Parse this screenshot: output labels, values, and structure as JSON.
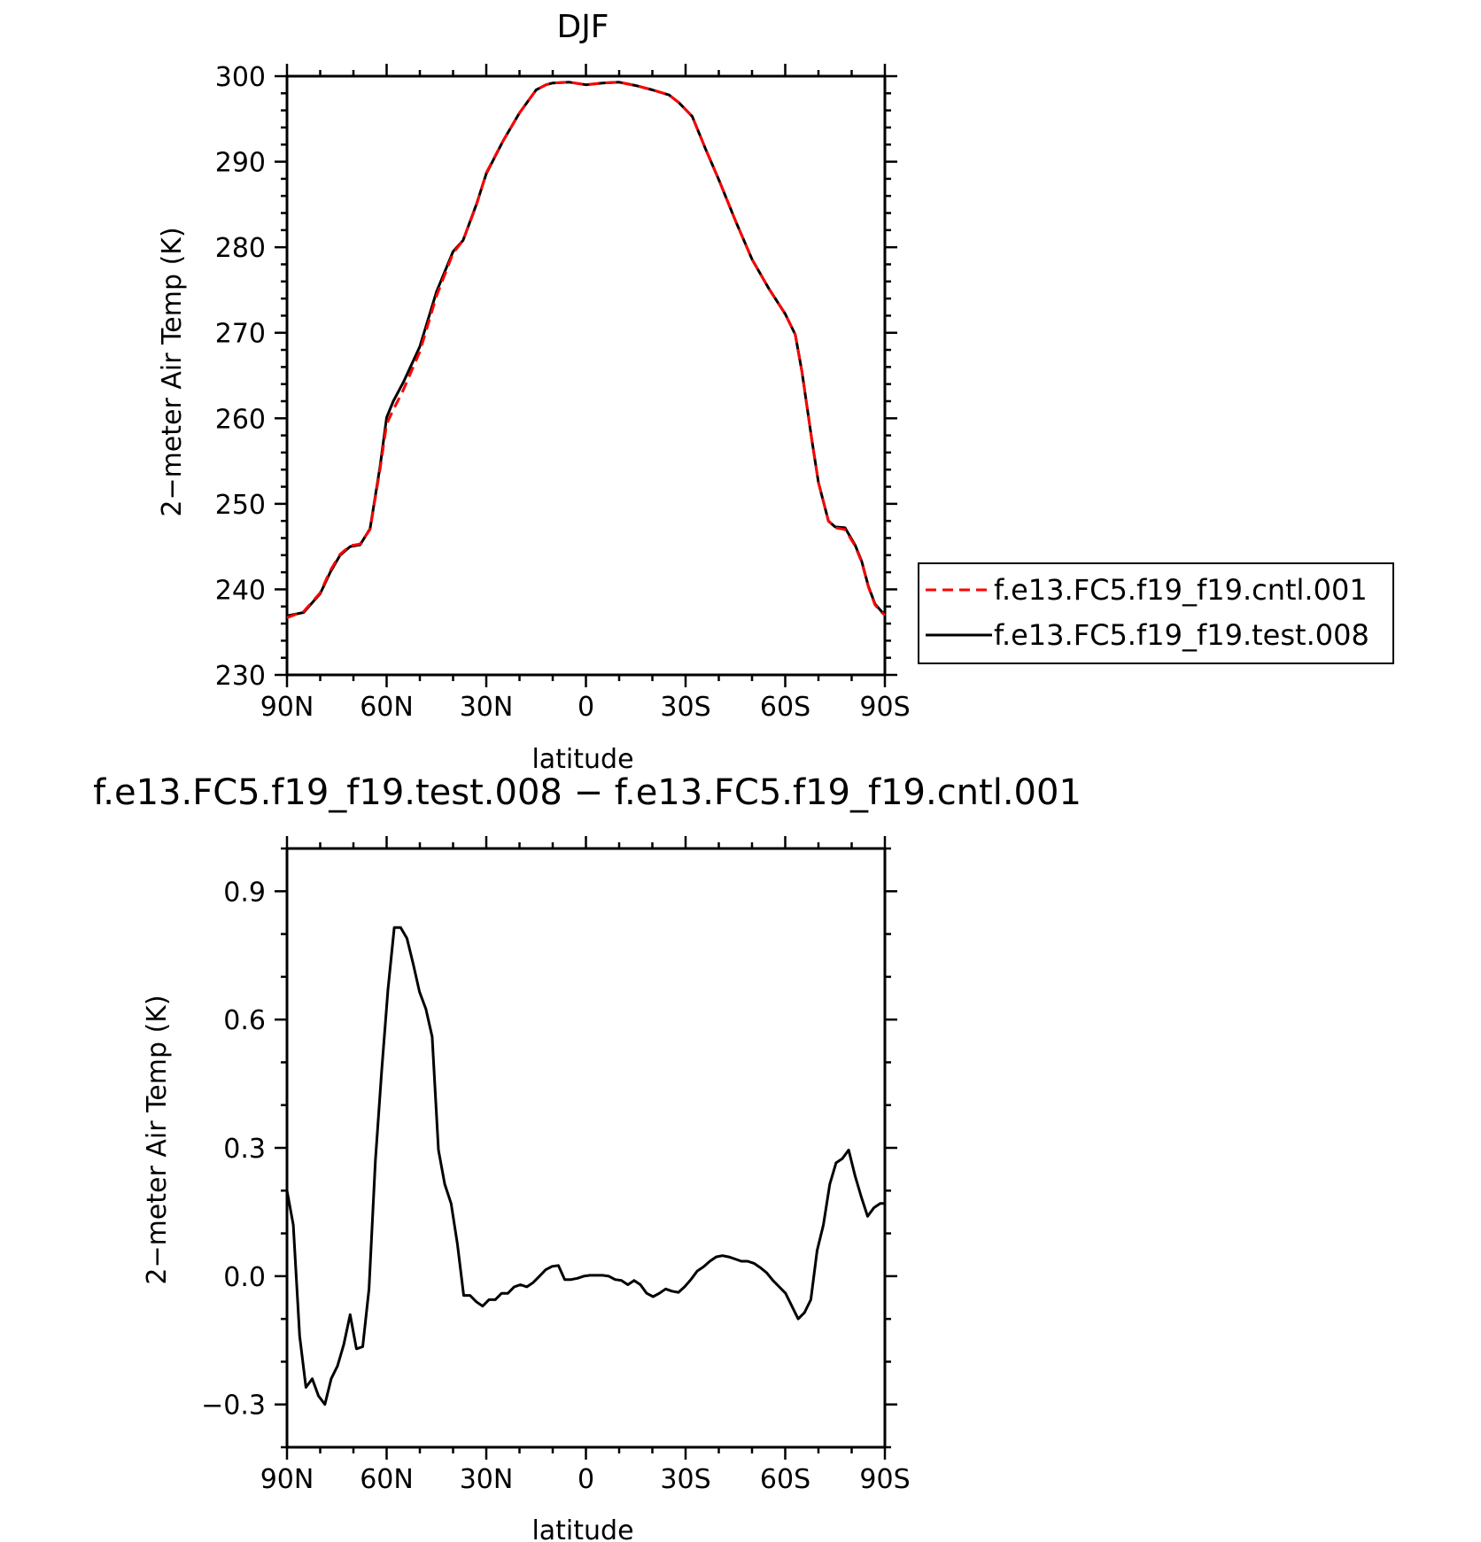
{
  "chart_data": [
    {
      "type": "line",
      "title": "DJF",
      "xlabel": "latitude",
      "ylabel": "2−meter Air Temp (K)",
      "xlim": [
        90,
        -90
      ],
      "ylim": [
        230,
        300
      ],
      "x_ticks": [
        {
          "value": 90,
          "label": "90N"
        },
        {
          "value": 60,
          "label": "60N"
        },
        {
          "value": 30,
          "label": "30N"
        },
        {
          "value": 0,
          "label": "0"
        },
        {
          "value": -30,
          "label": "30S"
        },
        {
          "value": -60,
          "label": "60S"
        },
        {
          "value": -90,
          "label": "90S"
        }
      ],
      "y_ticks": [
        {
          "value": 230,
          "label": "230"
        },
        {
          "value": 240,
          "label": "240"
        },
        {
          "value": 250,
          "label": "250"
        },
        {
          "value": 260,
          "label": "260"
        },
        {
          "value": 270,
          "label": "270"
        },
        {
          "value": 280,
          "label": "280"
        },
        {
          "value": 290,
          "label": "290"
        },
        {
          "value": 300,
          "label": "300"
        }
      ],
      "legend_position": "right",
      "series": [
        {
          "name": "f.e13.FC5.f19_f19.cntl.001",
          "color": "#ff0000",
          "dash": "dashed",
          "x": [
            90,
            85,
            80,
            77,
            74,
            71,
            68,
            65,
            62,
            60,
            58,
            55,
            50,
            45,
            40,
            37,
            33,
            30,
            25,
            20,
            15,
            12,
            10,
            5,
            0,
            -5,
            -10,
            -15,
            -20,
            -25,
            -28,
            -32,
            -36,
            -40,
            -45,
            -50,
            -55,
            -60,
            -63,
            -65,
            -68,
            -70,
            -73,
            -75,
            -78,
            -81,
            -83,
            -85,
            -87,
            -89,
            -90
          ],
          "y": [
            236.7,
            237.4,
            239.6,
            242.2,
            244.1,
            245.1,
            245.3,
            247.0,
            254.0,
            259.3,
            261.0,
            263.3,
            267.8,
            274.3,
            279.3,
            280.8,
            284.9,
            288.7,
            292.4,
            295.7,
            298.4,
            299.0,
            299.2,
            299.3,
            299.0,
            299.2,
            299.3,
            298.9,
            298.4,
            297.8,
            296.9,
            295.3,
            291.5,
            287.9,
            283.1,
            278.6,
            275.2,
            272.2,
            269.8,
            265.5,
            257.5,
            252.5,
            248.0,
            247.2,
            247.0,
            245.1,
            243.2,
            240.3,
            238.2,
            237.3,
            237.0
          ]
        },
        {
          "name": "f.e13.FC5.f19_f19.test.008",
          "color": "#000000",
          "dash": "solid",
          "x": [
            90,
            85,
            80,
            77,
            74,
            71,
            68,
            65,
            62,
            60,
            58,
            55,
            50,
            45,
            40,
            37,
            33,
            30,
            25,
            20,
            15,
            12,
            10,
            5,
            0,
            -5,
            -10,
            -15,
            -20,
            -25,
            -28,
            -32,
            -36,
            -40,
            -45,
            -50,
            -55,
            -60,
            -63,
            -65,
            -68,
            -70,
            -73,
            -75,
            -78,
            -81,
            -83,
            -85,
            -87,
            -89,
            -90
          ],
          "y": [
            236.9,
            237.3,
            239.5,
            242.0,
            244.0,
            245.0,
            245.2,
            247.1,
            254.3,
            260.1,
            262.0,
            264.2,
            268.4,
            274.8,
            279.5,
            280.8,
            285.0,
            288.6,
            292.4,
            295.7,
            298.4,
            299.0,
            299.2,
            299.3,
            299.0,
            299.2,
            299.3,
            298.9,
            298.4,
            297.8,
            296.9,
            295.3,
            291.5,
            287.9,
            283.1,
            278.6,
            275.2,
            272.2,
            269.8,
            265.5,
            257.5,
            252.5,
            248.0,
            247.3,
            247.2,
            245.2,
            243.3,
            240.4,
            238.3,
            237.4,
            237.1
          ]
        }
      ]
    },
    {
      "type": "line",
      "title": "f.e13.FC5.f19_f19.test.008 − f.e13.FC5.f19_f19.cntl.001",
      "xlabel": "latitude",
      "ylabel": "2−meter Air Temp (K)",
      "xlim": [
        90,
        -90
      ],
      "ylim": [
        -0.4,
        1.0
      ],
      "x_ticks": [
        {
          "value": 90,
          "label": "90N"
        },
        {
          "value": 60,
          "label": "60N"
        },
        {
          "value": 30,
          "label": "30N"
        },
        {
          "value": 0,
          "label": "0"
        },
        {
          "value": -30,
          "label": "30S"
        },
        {
          "value": -60,
          "label": "60S"
        },
        {
          "value": -90,
          "label": "90S"
        }
      ],
      "y_ticks": [
        {
          "value": -0.3,
          "label": "−0.3"
        },
        {
          "value": 0.0,
          "label": "0.0"
        },
        {
          "value": 0.3,
          "label": "0.3"
        },
        {
          "value": 0.6,
          "label": "0.6"
        },
        {
          "value": 0.9,
          "label": "0.9"
        }
      ],
      "series": [
        {
          "color": "#000000",
          "dash": "solid",
          "x": [
            90,
            88.1,
            86.2,
            84.3,
            82.4,
            80.5,
            78.6,
            76.7,
            74.8,
            72.9,
            71.0,
            69.1,
            67.2,
            65.3,
            63.4,
            61.5,
            59.6,
            57.7,
            55.8,
            53.9,
            52.0,
            50.1,
            48.2,
            46.3,
            44.4,
            42.5,
            40.6,
            38.7,
            36.8,
            34.9,
            33.0,
            31.1,
            29.2,
            27.3,
            25.4,
            23.5,
            21.6,
            19.7,
            17.8,
            15.9,
            14.0,
            12.1,
            10.2,
            8.3,
            6.4,
            4.5,
            2.6,
            0.7,
            -1.2,
            -3.1,
            -5.0,
            -6.9,
            -8.8,
            -10.7,
            -12.6,
            -14.5,
            -16.4,
            -18.3,
            -20.2,
            -22.1,
            -24.0,
            -25.9,
            -27.8,
            -29.7,
            -31.6,
            -33.5,
            -35.4,
            -37.3,
            -39.2,
            -41.1,
            -43.0,
            -44.9,
            -46.8,
            -48.7,
            -50.6,
            -52.5,
            -54.4,
            -56.3,
            -58.2,
            -60.1,
            -62.0,
            -63.9,
            -65.8,
            -67.7,
            -69.6,
            -71.5,
            -73.4,
            -75.3,
            -77.2,
            -79.1,
            -81.0,
            -82.9,
            -84.8,
            -86.7,
            -88.6,
            -90
          ],
          "y": [
            0.2,
            0.12,
            -0.14,
            -0.26,
            -0.24,
            -0.28,
            -0.3,
            -0.24,
            -0.21,
            -0.16,
            -0.09,
            -0.17,
            -0.165,
            -0.03,
            0.27,
            0.48,
            0.67,
            0.815,
            0.815,
            0.79,
            0.73,
            0.665,
            0.625,
            0.56,
            0.295,
            0.215,
            0.17,
            0.075,
            -0.045,
            -0.045,
            -0.06,
            -0.07,
            -0.055,
            -0.055,
            -0.04,
            -0.04,
            -0.025,
            -0.02,
            -0.025,
            -0.015,
            0.0,
            0.015,
            0.023,
            0.025,
            -0.008,
            -0.008,
            -0.005,
            0.0,
            0.002,
            0.002,
            0.002,
            0.0,
            -0.008,
            -0.01,
            -0.02,
            -0.01,
            -0.02,
            -0.04,
            -0.048,
            -0.04,
            -0.03,
            -0.035,
            -0.038,
            -0.025,
            -0.008,
            0.012,
            0.022,
            0.035,
            0.045,
            0.048,
            0.045,
            0.04,
            0.035,
            0.035,
            0.03,
            0.02,
            0.008,
            -0.01,
            -0.025,
            -0.04,
            -0.07,
            -0.1,
            -0.085,
            -0.055,
            0.06,
            0.12,
            0.215,
            0.265,
            0.275,
            0.295,
            0.235,
            0.185,
            0.14,
            0.16,
            0.17,
            0.17
          ]
        }
      ]
    }
  ],
  "colors": {
    "axis": "#000000",
    "background": "#ffffff"
  }
}
